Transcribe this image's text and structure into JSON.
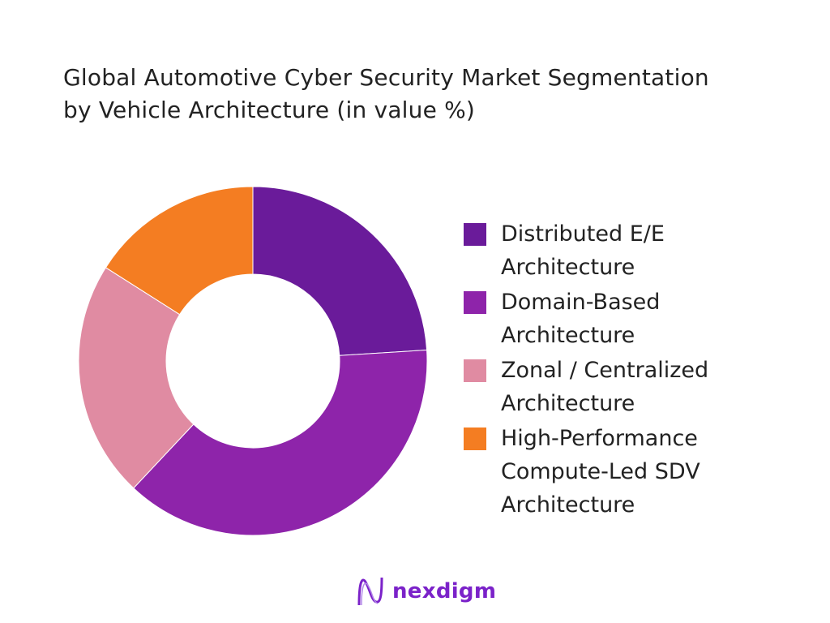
{
  "chart_data": {
    "type": "pie",
    "donut": true,
    "title": "Global Automotive Cyber Security Market Segmentation by Vehicle Architecture (in value %)",
    "title_lines": [
      "Global Automotive Cyber Security Market Segmentation",
      "by Vehicle Architecture (in value %)"
    ],
    "categories": [
      "Distributed E/E Architecture",
      "Domain-Based Architecture",
      "Zonal / Centralized Architecture",
      "High-Performance Compute-Led SDV Architecture"
    ],
    "values": [
      24,
      38,
      22,
      16
    ],
    "colors": [
      "#6a1b9a",
      "#8e24aa",
      "#e08ba2",
      "#f47d22"
    ],
    "legend_position": "right"
  },
  "branding": {
    "logo_text": "nexdigm",
    "logo_color": "#7b22c9"
  }
}
